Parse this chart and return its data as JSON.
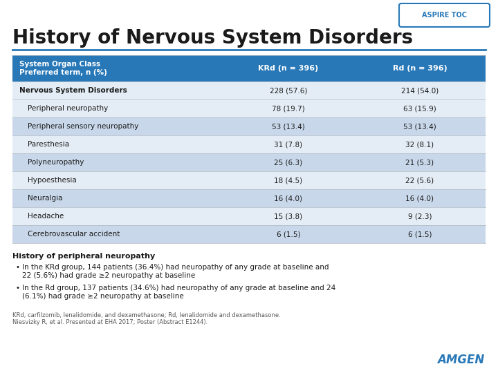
{
  "title": "History of Nervous System Disorders",
  "aspire_toc_label": "ASPIRE TOC",
  "header_bg": "#2878B8",
  "header_text_color": "#FFFFFF",
  "col1_header": "System Organ Class\nPreferred term, n (%)",
  "col2_header": "KRd (n = 396)",
  "col3_header": "Rd (n = 396)",
  "rows": [
    [
      "Nervous System Disorders",
      "228 (57.6)",
      "214 (54.0)",
      false
    ],
    [
      "  Peripheral neuropathy",
      "78 (19.7)",
      "63 (15.9)",
      false
    ],
    [
      "  Peripheral sensory neuropathy",
      "53 (13.4)",
      "53 (13.4)",
      true
    ],
    [
      "  Paresthesia",
      "31 (7.8)",
      "32 (8.1)",
      false
    ],
    [
      "  Polyneuropathy",
      "25 (6.3)",
      "21 (5.3)",
      true
    ],
    [
      "  Hypoesthesia",
      "18 (4.5)",
      "22 (5.6)",
      false
    ],
    [
      "  Neuralgia",
      "16 (4.0)",
      "16 (4.0)",
      true
    ],
    [
      "  Headache",
      "15 (3.8)",
      "9 (2.3)",
      false
    ],
    [
      "  Cerebrovascular accident",
      "6 (1.5)",
      "6 (1.5)",
      true
    ]
  ],
  "row_bg_alt": "#C8D8EA",
  "row_bg_normal": "#E4EDF5",
  "footnote_bold": "History of peripheral neuropathy",
  "bullets": [
    "In the KRd group, 144 patients (36.4%) had neuropathy of any grade at baseline and\n22 (5.6%) had grade ≥2 neuropathy at baseline",
    "In the Rd group, 137 patients (34.6%) had neuropathy of any grade at baseline and 24\n(6.1%) had grade ≥2 neuropathy at baseline"
  ],
  "footnote_small": "KRd, carfilzomib, lenalidomide, and dexamethasone; Rd, lenalidomide and dexamethasone.\nNiesvizky R, et al. Presented at EHA 2017; Poster (Abstract E1244).",
  "amgen_color": "#2878B8",
  "bg_color": "#FFFFFF",
  "border_color": "#2878B8",
  "rule_color": "#2878B8",
  "grid_color": "#B0B8C0"
}
